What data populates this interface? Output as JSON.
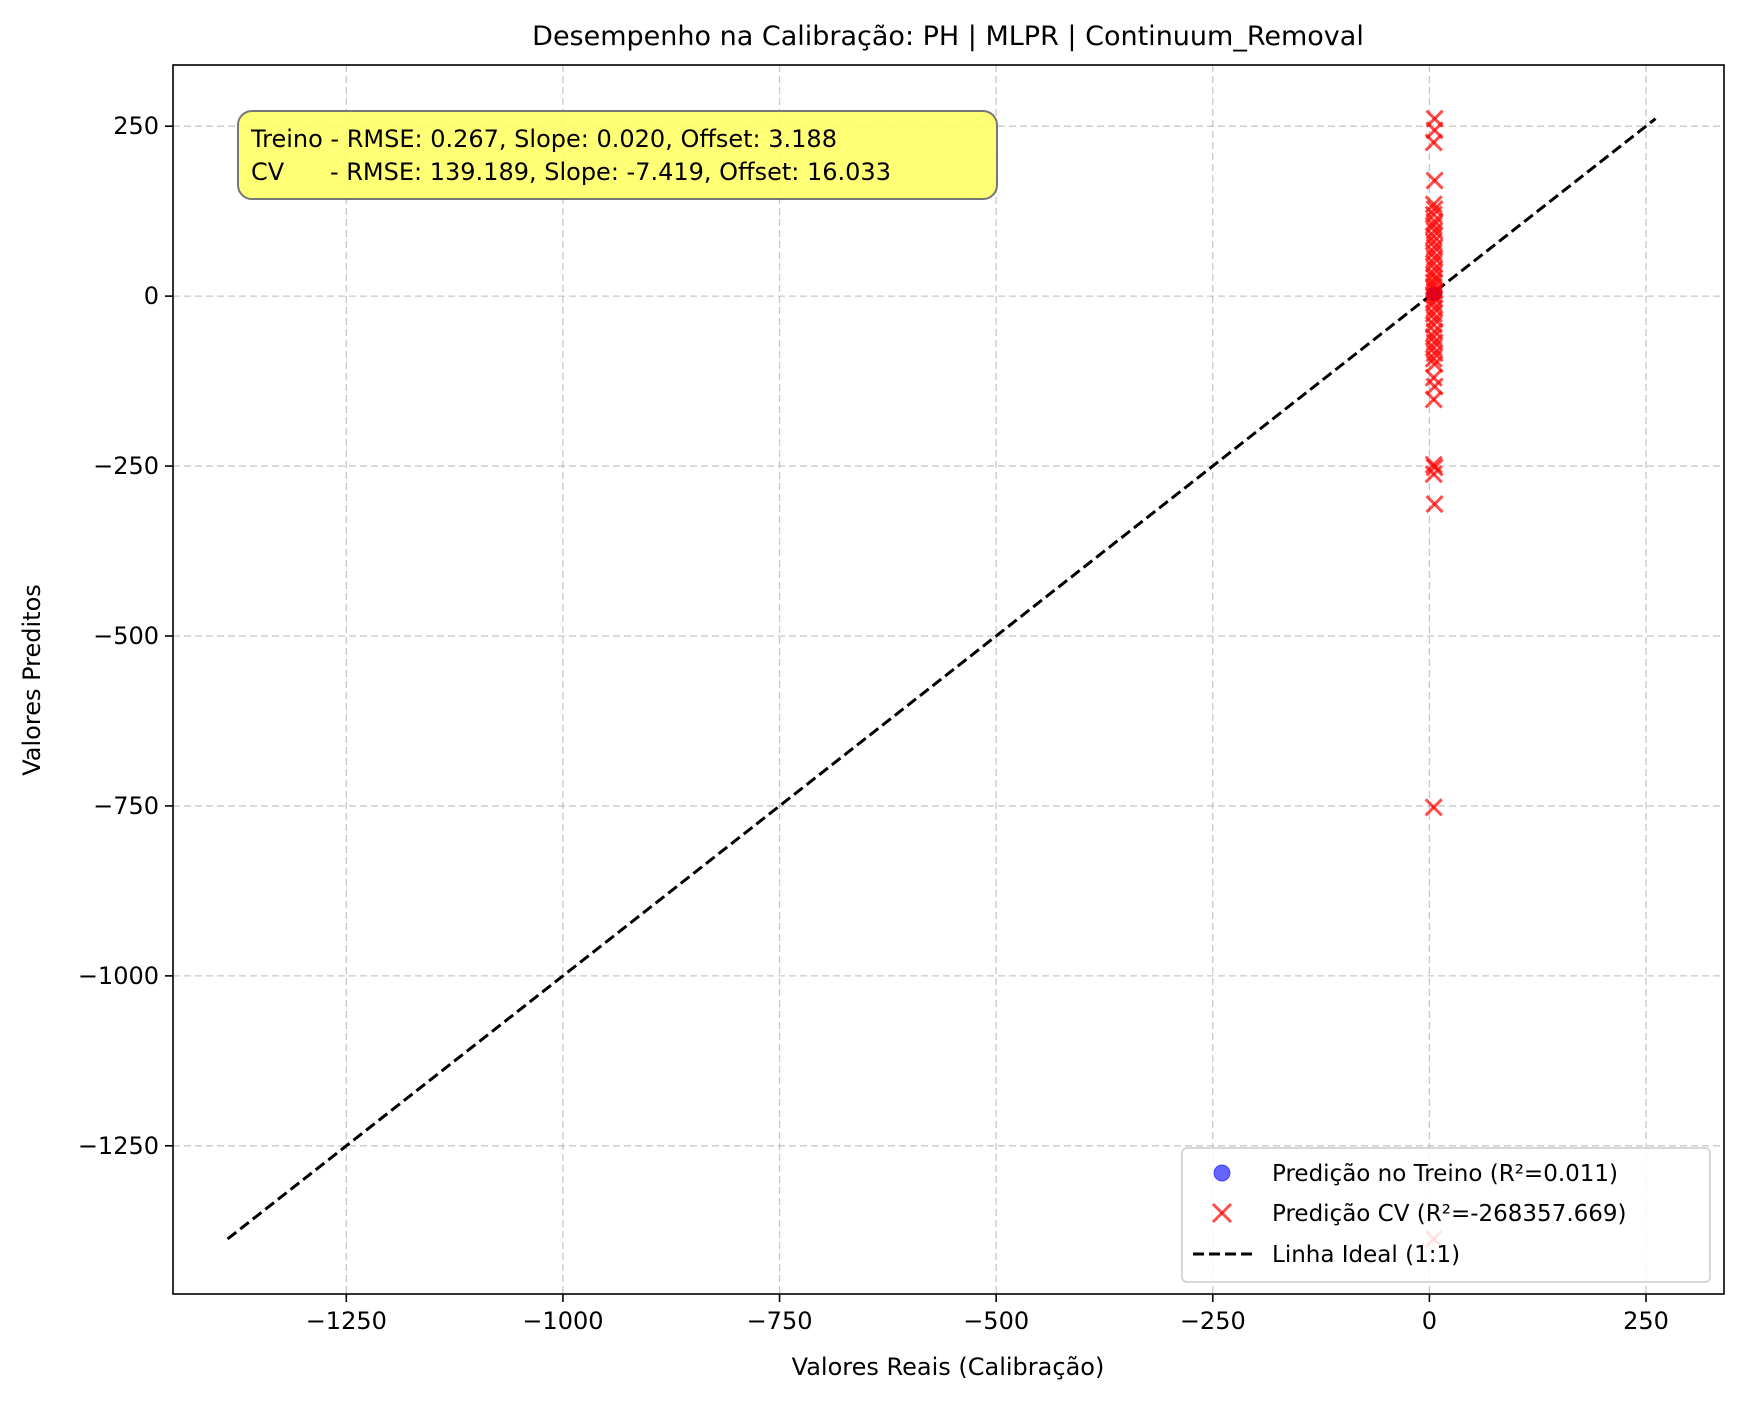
{
  "chart_data": {
    "type": "scatter",
    "title": "Desempenho na Calibração: PH | MLPR | Continuum_Removal",
    "xlabel": "Valores Reais (Calibração)",
    "ylabel": "Valores Preditos",
    "xlim": [
      -1450,
      340
    ],
    "ylim": [
      -1468,
      340
    ],
    "grid": true,
    "xticks": [
      -1250,
      -1000,
      -750,
      -500,
      -250,
      0,
      250
    ],
    "yticks": [
      250,
      0,
      -250,
      -500,
      -750,
      -1000,
      -1250
    ],
    "xtick_labels": [
      "−1250",
      "−1000",
      "−750",
      "−500",
      "−250",
      "0",
      "250"
    ],
    "ytick_labels": [
      "250",
      "0",
      "−250",
      "−500",
      "−750",
      "−1000",
      "−1250"
    ],
    "annotation": {
      "line1": "Treino - RMSE: 0.267, Slope: 0.020, Offset: 3.188",
      "line2": "CV      - RMSE: 139.189, Slope: -7.419, Offset: 16.033",
      "bg_color": "#ffff66"
    },
    "legend": {
      "placement": "lower-right",
      "entries": [
        {
          "label": "Predição no Treino (R²=0.011)",
          "marker": "circle",
          "color": "#0000ff"
        },
        {
          "label": "Predição CV (R²=-268357.669)",
          "marker": "x",
          "color": "#ff0000"
        },
        {
          "label": "Linha Ideal (1:1)",
          "marker": "dashed-line",
          "color": "#000000"
        }
      ]
    },
    "series": [
      {
        "name": "Predição no Treino (R²=0.011)",
        "marker": "circle",
        "color": "#0000ff",
        "x": [
          4.5,
          5.0,
          5.5,
          6.0,
          6.5,
          7.0
        ],
        "y": [
          3.3,
          3.3,
          3.3,
          3.3,
          3.3,
          3.3
        ]
      },
      {
        "name": "Predição CV (R²=-268357.669)",
        "marker": "x",
        "color": "#ff0000",
        "x": [
          6,
          6,
          5,
          6,
          5,
          6,
          5,
          6,
          5,
          6,
          5,
          5,
          6,
          5,
          6,
          5,
          6,
          5,
          6,
          5,
          5,
          6,
          5,
          6,
          5,
          6,
          5,
          6,
          5,
          6,
          5,
          6,
          5,
          6,
          5,
          6,
          5,
          6,
          5,
          5,
          6,
          5,
          6,
          5,
          5
        ],
        "y": [
          261,
          244,
          226,
          170,
          135,
          128,
          120,
          110,
          104,
          96,
          88,
          80,
          72,
          64,
          56,
          48,
          40,
          32,
          26,
          20,
          14,
          8,
          2,
          -4,
          -10,
          -18,
          -26,
          -34,
          -42,
          -52,
          -60,
          -68,
          -76,
          -84,
          -92,
          -100,
          -120,
          -133,
          -152,
          -248,
          -252,
          -262,
          -306,
          -752,
          -1387
        ]
      },
      {
        "name": "Linha Ideal (1:1)",
        "marker": "dashed-line",
        "color": "#000000",
        "x": [
          -1387,
          261
        ],
        "y": [
          -1387,
          261
        ]
      }
    ]
  }
}
